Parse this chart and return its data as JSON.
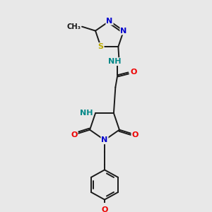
{
  "bg_color": "#e8e8e8",
  "bond_color": "#1a1a1a",
  "atom_colors": {
    "N": "#0000cc",
    "O": "#ee0000",
    "S": "#bbaa00",
    "C": "#1a1a1a",
    "NH": "#008888"
  },
  "lw": 1.4,
  "fs": 8.0,
  "fs_small": 7.2
}
